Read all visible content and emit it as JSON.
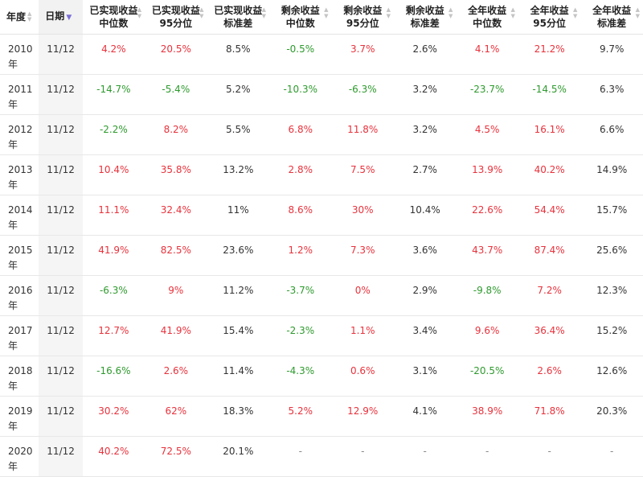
{
  "headers": {
    "year": "年度",
    "date": "日期",
    "cols": [
      [
        "已实现收益",
        "中位数"
      ],
      [
        "已实现收益",
        "95分位"
      ],
      [
        "已实现收益",
        "标准差"
      ],
      [
        "剩余收益",
        "中位数"
      ],
      [
        "剩余收益",
        "95分位"
      ],
      [
        "剩余收益",
        "标准差"
      ],
      [
        "全年收益",
        "中位数"
      ],
      [
        "全年收益",
        "95分位"
      ],
      [
        "全年收益",
        "标准差"
      ]
    ]
  },
  "colors": {
    "positive": "#e8323c",
    "negative": "#2e9a2e",
    "neutral": "#333333",
    "sort_active": "#7b6fd6"
  },
  "rows": [
    {
      "year": [
        "2010",
        "年"
      ],
      "date": "11/12",
      "values": [
        "4.2%",
        "20.5%",
        "8.5%",
        "-0.5%",
        "3.7%",
        "2.6%",
        "4.1%",
        "21.2%",
        "9.7%"
      ]
    },
    {
      "year": [
        "2011",
        "年"
      ],
      "date": "11/12",
      "values": [
        "-14.7%",
        "-5.4%",
        "5.2%",
        "-10.3%",
        "-6.3%",
        "3.2%",
        "-23.7%",
        "-14.5%",
        "6.3%"
      ]
    },
    {
      "year": [
        "2012",
        "年"
      ],
      "date": "11/12",
      "values": [
        "-2.2%",
        "8.2%",
        "5.5%",
        "6.8%",
        "11.8%",
        "3.2%",
        "4.5%",
        "16.1%",
        "6.6%"
      ]
    },
    {
      "year": [
        "2013",
        "年"
      ],
      "date": "11/12",
      "values": [
        "10.4%",
        "35.8%",
        "13.2%",
        "2.8%",
        "7.5%",
        "2.7%",
        "13.9%",
        "40.2%",
        "14.9%"
      ]
    },
    {
      "year": [
        "2014",
        "年"
      ],
      "date": "11/12",
      "values": [
        "11.1%",
        "32.4%",
        "11%",
        "8.6%",
        "30%",
        "10.4%",
        "22.6%",
        "54.4%",
        "15.7%"
      ]
    },
    {
      "year": [
        "2015",
        "年"
      ],
      "date": "11/12",
      "values": [
        "41.9%",
        "82.5%",
        "23.6%",
        "1.2%",
        "7.3%",
        "3.6%",
        "43.7%",
        "87.4%",
        "25.6%"
      ]
    },
    {
      "year": [
        "2016",
        "年"
      ],
      "date": "11/12",
      "values": [
        "-6.3%",
        "9%",
        "11.2%",
        "-3.7%",
        "0%",
        "2.9%",
        "-9.8%",
        "7.2%",
        "12.3%"
      ]
    },
    {
      "year": [
        "2017",
        "年"
      ],
      "date": "11/12",
      "values": [
        "12.7%",
        "41.9%",
        "15.4%",
        "-2.3%",
        "1.1%",
        "3.4%",
        "9.6%",
        "36.4%",
        "15.2%"
      ]
    },
    {
      "year": [
        "2018",
        "年"
      ],
      "date": "11/12",
      "values": [
        "-16.6%",
        "2.6%",
        "11.4%",
        "-4.3%",
        "0.6%",
        "3.1%",
        "-20.5%",
        "2.6%",
        "12.6%"
      ]
    },
    {
      "year": [
        "2019",
        "年"
      ],
      "date": "11/12",
      "values": [
        "30.2%",
        "62%",
        "18.3%",
        "5.2%",
        "12.9%",
        "4.1%",
        "38.9%",
        "71.8%",
        "20.3%"
      ]
    },
    {
      "year": [
        "2020",
        "年"
      ],
      "date": "11/12",
      "values": [
        "40.2%",
        "72.5%",
        "20.1%",
        "-",
        "-",
        "-",
        "-",
        "-",
        "-"
      ]
    }
  ]
}
